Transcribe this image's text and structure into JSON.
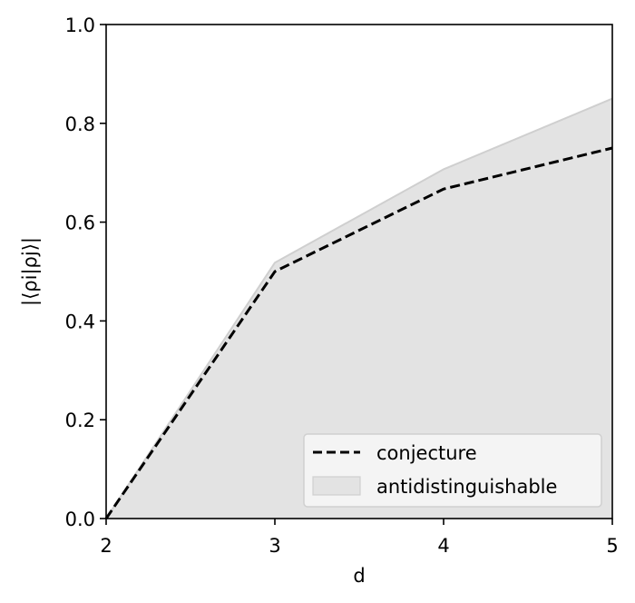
{
  "chart_data": {
    "type": "line",
    "xlabel": "d",
    "ylabel": "|⟨ρi|ρj⟩|",
    "xlim": [
      2,
      5
    ],
    "ylim": [
      0.0,
      1.0
    ],
    "x_ticks": [
      "2",
      "3",
      "4",
      "5"
    ],
    "y_ticks": [
      "0.0",
      "0.2",
      "0.4",
      "0.6",
      "0.8",
      "1.0"
    ],
    "grid": false,
    "legend_position": "bottom-right",
    "series": [
      {
        "name": "conjecture",
        "style": "dashed",
        "color": "#000000",
        "x": [
          2,
          3,
          4,
          5
        ],
        "values": [
          0.0,
          0.5,
          0.667,
          0.75
        ]
      },
      {
        "name": "antidistinguishable",
        "style": "fill",
        "color": "#d9d9d9",
        "x": [
          2,
          3,
          4,
          5
        ],
        "values": [
          0.0,
          0.518,
          0.707,
          0.85
        ]
      }
    ]
  }
}
